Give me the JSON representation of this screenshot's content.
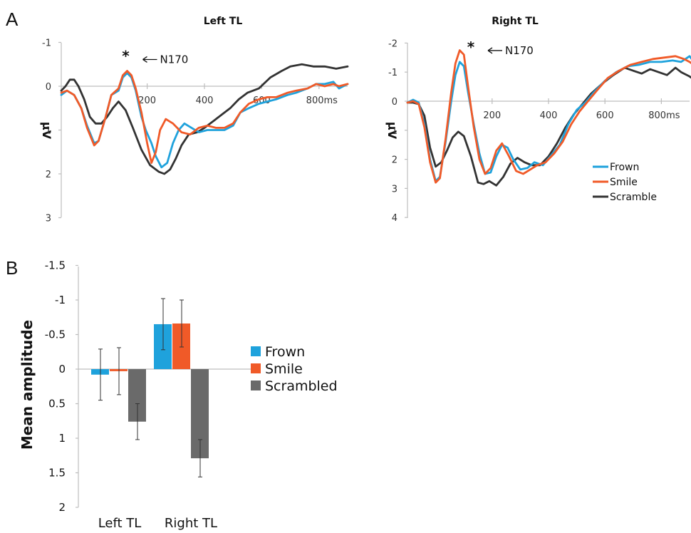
{
  "panel_labels": {
    "a": "A",
    "b": "B"
  },
  "colors": {
    "frown": "#1fa2dc",
    "smile": "#f05a28",
    "scramble": "#333333",
    "scrambled_bar": "#6a6a6a"
  },
  "chart_data": [
    {
      "type": "line",
      "title": "Left TL",
      "ylabel": "µV",
      "y_inverted": true,
      "ylim": [
        -1,
        3
      ],
      "xlim": [
        -100,
        900
      ],
      "yticks": [
        "-1",
        "0",
        "1",
        "2",
        "3"
      ],
      "xticks": [
        "200",
        "400",
        "600",
        "800ms"
      ],
      "xtick_values": [
        200,
        400,
        600,
        800
      ],
      "annotation": {
        "star": "*",
        "text": "N170",
        "x": 150,
        "y": -0.35
      },
      "series": [
        {
          "name": "Frown",
          "color": "#1fa2dc",
          "points": [
            [
              -100,
              0.2
            ],
            [
              -80,
              0.1
            ],
            [
              -55,
              0.2
            ],
            [
              -30,
              0.5
            ],
            [
              -10,
              0.9
            ],
            [
              15,
              1.3
            ],
            [
              30,
              1.25
            ],
            [
              55,
              0.7
            ],
            [
              75,
              0.2
            ],
            [
              100,
              0.1
            ],
            [
              115,
              -0.2
            ],
            [
              130,
              -0.3
            ],
            [
              145,
              -0.2
            ],
            [
              160,
              0.1
            ],
            [
              180,
              0.7
            ],
            [
              195,
              1.0
            ],
            [
              215,
              1.3
            ],
            [
              230,
              1.6
            ],
            [
              250,
              1.85
            ],
            [
              270,
              1.75
            ],
            [
              290,
              1.3
            ],
            [
              310,
              1.0
            ],
            [
              330,
              0.85
            ],
            [
              355,
              0.95
            ],
            [
              380,
              1.05
            ],
            [
              410,
              1.0
            ],
            [
              440,
              1.0
            ],
            [
              470,
              1.0
            ],
            [
              500,
              0.9
            ],
            [
              525,
              0.6
            ],
            [
              555,
              0.5
            ],
            [
              590,
              0.4
            ],
            [
              620,
              0.35
            ],
            [
              650,
              0.3
            ],
            [
              690,
              0.2
            ],
            [
              720,
              0.15
            ],
            [
              760,
              0.05
            ],
            [
              790,
              -0.05
            ],
            [
              820,
              -0.05
            ],
            [
              850,
              -0.1
            ],
            [
              870,
              0.05
            ],
            [
              900,
              -0.05
            ]
          ]
        },
        {
          "name": "Smile",
          "color": "#f05a28",
          "points": [
            [
              -100,
              0.15
            ],
            [
              -80,
              0.1
            ],
            [
              -55,
              0.2
            ],
            [
              -30,
              0.5
            ],
            [
              -10,
              0.95
            ],
            [
              15,
              1.35
            ],
            [
              30,
              1.25
            ],
            [
              55,
              0.7
            ],
            [
              75,
              0.2
            ],
            [
              100,
              0.05
            ],
            [
              115,
              -0.25
            ],
            [
              130,
              -0.35
            ],
            [
              145,
              -0.25
            ],
            [
              160,
              0.05
            ],
            [
              180,
              0.6
            ],
            [
              200,
              1.3
            ],
            [
              215,
              1.75
            ],
            [
              230,
              1.5
            ],
            [
              245,
              1.0
            ],
            [
              265,
              0.75
            ],
            [
              290,
              0.85
            ],
            [
              320,
              1.05
            ],
            [
              350,
              1.1
            ],
            [
              380,
              0.95
            ],
            [
              410,
              0.9
            ],
            [
              440,
              0.95
            ],
            [
              470,
              0.95
            ],
            [
              500,
              0.85
            ],
            [
              525,
              0.6
            ],
            [
              555,
              0.4
            ],
            [
              590,
              0.3
            ],
            [
              620,
              0.25
            ],
            [
              650,
              0.25
            ],
            [
              690,
              0.15
            ],
            [
              720,
              0.1
            ],
            [
              760,
              0.05
            ],
            [
              790,
              -0.05
            ],
            [
              820,
              0.0
            ],
            [
              850,
              -0.05
            ],
            [
              870,
              0.0
            ],
            [
              900,
              -0.05
            ]
          ]
        },
        {
          "name": "Scramble",
          "color": "#333333",
          "points": [
            [
              -100,
              0.1
            ],
            [
              -85,
              0.0
            ],
            [
              -70,
              -0.15
            ],
            [
              -55,
              -0.15
            ],
            [
              -40,
              0.0
            ],
            [
              -20,
              0.3
            ],
            [
              0,
              0.7
            ],
            [
              20,
              0.85
            ],
            [
              40,
              0.85
            ],
            [
              60,
              0.7
            ],
            [
              80,
              0.5
            ],
            [
              100,
              0.35
            ],
            [
              125,
              0.55
            ],
            [
              150,
              0.95
            ],
            [
              180,
              1.45
            ],
            [
              210,
              1.8
            ],
            [
              240,
              1.95
            ],
            [
              260,
              2.0
            ],
            [
              280,
              1.9
            ],
            [
              300,
              1.65
            ],
            [
              320,
              1.35
            ],
            [
              345,
              1.1
            ],
            [
              375,
              1.05
            ],
            [
              400,
              0.95
            ],
            [
              430,
              0.8
            ],
            [
              460,
              0.65
            ],
            [
              490,
              0.5
            ],
            [
              520,
              0.3
            ],
            [
              550,
              0.15
            ],
            [
              590,
              0.05
            ],
            [
              630,
              -0.2
            ],
            [
              670,
              -0.35
            ],
            [
              700,
              -0.45
            ],
            [
              740,
              -0.5
            ],
            [
              780,
              -0.45
            ],
            [
              820,
              -0.45
            ],
            [
              860,
              -0.4
            ],
            [
              900,
              -0.45
            ]
          ]
        }
      ]
    },
    {
      "type": "line",
      "title": "Right TL",
      "ylabel": "µV",
      "y_inverted": true,
      "ylim": [
        -2,
        4
      ],
      "xlim": [
        -100,
        900
      ],
      "yticks": [
        "-2",
        "-1",
        "0",
        "1",
        "2",
        "3",
        "4"
      ],
      "xticks": [
        "200",
        "400",
        "600",
        "800ms"
      ],
      "xtick_values": [
        200,
        400,
        600,
        800
      ],
      "annotation": {
        "star": "*",
        "text": "N170",
        "x": 150,
        "y": -1.35
      },
      "legend": {
        "position": "bottom-right"
      },
      "series": [
        {
          "name": "Frown",
          "color": "#1fa2dc",
          "points": [
            [
              -100,
              0.05
            ],
            [
              -80,
              -0.05
            ],
            [
              -60,
              0.05
            ],
            [
              -40,
              0.8
            ],
            [
              -20,
              2.0
            ],
            [
              0,
              2.75
            ],
            [
              15,
              2.6
            ],
            [
              35,
              1.4
            ],
            [
              55,
              0.0
            ],
            [
              70,
              -0.9
            ],
            [
              85,
              -1.35
            ],
            [
              100,
              -1.2
            ],
            [
              115,
              -0.3
            ],
            [
              135,
              0.8
            ],
            [
              155,
              1.8
            ],
            [
              175,
              2.5
            ],
            [
              195,
              2.45
            ],
            [
              215,
              1.9
            ],
            [
              235,
              1.5
            ],
            [
              255,
              1.6
            ],
            [
              275,
              2.0
            ],
            [
              300,
              2.35
            ],
            [
              325,
              2.3
            ],
            [
              350,
              2.1
            ],
            [
              380,
              2.2
            ],
            [
              410,
              1.85
            ],
            [
              440,
              1.5
            ],
            [
              470,
              0.8
            ],
            [
              500,
              0.3
            ],
            [
              530,
              0.05
            ],
            [
              560,
              -0.3
            ],
            [
              600,
              -0.7
            ],
            [
              640,
              -1.0
            ],
            [
              680,
              -1.2
            ],
            [
              720,
              -1.25
            ],
            [
              760,
              -1.35
            ],
            [
              800,
              -1.35
            ],
            [
              840,
              -1.4
            ],
            [
              870,
              -1.35
            ],
            [
              900,
              -1.55
            ],
            [
              915,
              -1.35
            ]
          ]
        },
        {
          "name": "Smile",
          "color": "#f05a28",
          "points": [
            [
              -100,
              0.05
            ],
            [
              -80,
              0.0
            ],
            [
              -60,
              0.1
            ],
            [
              -40,
              0.9
            ],
            [
              -20,
              2.1
            ],
            [
              0,
              2.8
            ],
            [
              15,
              2.65
            ],
            [
              35,
              1.3
            ],
            [
              55,
              -0.3
            ],
            [
              70,
              -1.3
            ],
            [
              85,
              -1.75
            ],
            [
              100,
              -1.6
            ],
            [
              115,
              -0.5
            ],
            [
              135,
              0.9
            ],
            [
              155,
              2.0
            ],
            [
              175,
              2.5
            ],
            [
              195,
              2.3
            ],
            [
              215,
              1.7
            ],
            [
              235,
              1.45
            ],
            [
              260,
              1.9
            ],
            [
              285,
              2.4
            ],
            [
              310,
              2.5
            ],
            [
              335,
              2.35
            ],
            [
              360,
              2.2
            ],
            [
              390,
              2.1
            ],
            [
              420,
              1.8
            ],
            [
              450,
              1.4
            ],
            [
              480,
              0.8
            ],
            [
              510,
              0.35
            ],
            [
              540,
              0.0
            ],
            [
              570,
              -0.35
            ],
            [
              610,
              -0.8
            ],
            [
              650,
              -1.05
            ],
            [
              690,
              -1.25
            ],
            [
              730,
              -1.35
            ],
            [
              770,
              -1.45
            ],
            [
              810,
              -1.5
            ],
            [
              850,
              -1.55
            ],
            [
              880,
              -1.45
            ],
            [
              900,
              -1.35
            ],
            [
              915,
              -1.25
            ]
          ]
        },
        {
          "name": "Scramble",
          "color": "#333333",
          "points": [
            [
              -100,
              0.05
            ],
            [
              -80,
              0.05
            ],
            [
              -60,
              0.1
            ],
            [
              -40,
              0.5
            ],
            [
              -20,
              1.6
            ],
            [
              0,
              2.25
            ],
            [
              20,
              2.1
            ],
            [
              40,
              1.7
            ],
            [
              60,
              1.25
            ],
            [
              80,
              1.05
            ],
            [
              100,
              1.2
            ],
            [
              125,
              1.9
            ],
            [
              150,
              2.8
            ],
            [
              170,
              2.85
            ],
            [
              190,
              2.75
            ],
            [
              215,
              2.9
            ],
            [
              240,
              2.6
            ],
            [
              265,
              2.15
            ],
            [
              290,
              1.95
            ],
            [
              315,
              2.1
            ],
            [
              340,
              2.2
            ],
            [
              370,
              2.2
            ],
            [
              400,
              1.9
            ],
            [
              430,
              1.45
            ],
            [
              460,
              0.9
            ],
            [
              490,
              0.45
            ],
            [
              520,
              0.1
            ],
            [
              550,
              -0.25
            ],
            [
              590,
              -0.6
            ],
            [
              630,
              -0.9
            ],
            [
              670,
              -1.15
            ],
            [
              700,
              -1.05
            ],
            [
              730,
              -0.95
            ],
            [
              760,
              -1.1
            ],
            [
              790,
              -1.0
            ],
            [
              820,
              -0.9
            ],
            [
              850,
              -1.15
            ],
            [
              870,
              -1.0
            ],
            [
              900,
              -0.85
            ],
            [
              915,
              -0.75
            ]
          ]
        }
      ]
    },
    {
      "type": "bar",
      "ylabel": "Mean amplitude",
      "y_inverted": true,
      "ylim": [
        -1.5,
        2
      ],
      "yticks": [
        "-1.5",
        "-1",
        "-0.5",
        "0",
        "0.5",
        "1",
        "1.5",
        "2"
      ],
      "categories": [
        "Left TL",
        "Right TL"
      ],
      "legend": {
        "position": "right"
      },
      "series": [
        {
          "name": "Frown",
          "color": "#1fa2dc",
          "values": [
            0.08,
            -0.65
          ],
          "errors": [
            0.37,
            0.37
          ]
        },
        {
          "name": "Smile",
          "color": "#f05a28",
          "values": [
            0.03,
            -0.66
          ],
          "errors": [
            0.34,
            0.34
          ]
        },
        {
          "name": "Scrambled",
          "color": "#6a6a6a",
          "values": [
            0.76,
            1.29
          ],
          "errors": [
            0.26,
            0.27
          ]
        }
      ]
    }
  ]
}
